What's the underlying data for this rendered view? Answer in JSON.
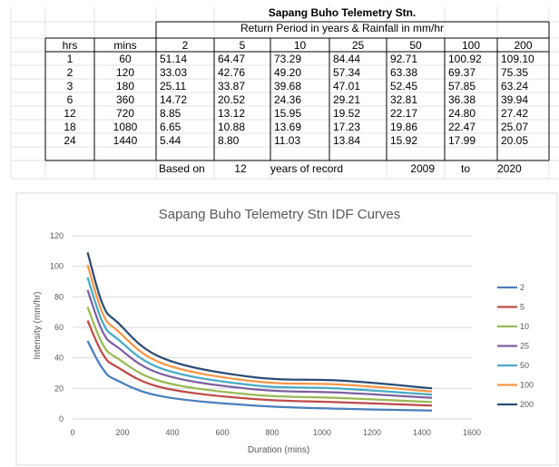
{
  "sheet": {
    "title": "Sapang Buho Telemetry Stn.",
    "subtitle": "Return Period in years & Rainfall in mm/hr",
    "headers": [
      "hrs",
      "mins",
      "2",
      "5",
      "10",
      "25",
      "50",
      "100",
      "200"
    ],
    "rows": [
      [
        "1",
        "60",
        "51.14",
        "64.47",
        "73.29",
        "84.44",
        "92.71",
        "100.92",
        "109.10"
      ],
      [
        "2",
        "120",
        "33.03",
        "42.76",
        "49.20",
        "57.34",
        "63.38",
        "69.37",
        "75.35"
      ],
      [
        "3",
        "180",
        "25.11",
        "33.87",
        "39.68",
        "47.01",
        "52.45",
        "57.85",
        "63.24"
      ],
      [
        "6",
        "360",
        "14.72",
        "20.52",
        "24.36",
        "29.21",
        "32.81",
        "36.38",
        "39.94"
      ],
      [
        "12",
        "720",
        "8.85",
        "13.12",
        "15.95",
        "19.52",
        "22.17",
        "24.80",
        "27.42"
      ],
      [
        "18",
        "1080",
        "6.65",
        "10.88",
        "13.69",
        "17.23",
        "19.86",
        "22.47",
        "25.07"
      ],
      [
        "24",
        "1440",
        "5.44",
        "8.80",
        "11.03",
        "13.84",
        "15.92",
        "17.99",
        "20.05"
      ]
    ],
    "footer": {
      "based_on": "Based on",
      "years": "12",
      "years_of_record": "years of record",
      "start_year": "2009",
      "to": "to",
      "end_year": "2020"
    }
  },
  "chart_data": {
    "type": "line",
    "title": "Sapang Buho Telemetry Stn IDF Curves",
    "xlabel": "Duration (mins)",
    "ylabel": "Intensity (mm/hr)",
    "xlim": [
      0,
      1600
    ],
    "ylim": [
      0,
      120
    ],
    "xticks": [
      0,
      200,
      400,
      600,
      800,
      1000,
      1200,
      1400,
      1600
    ],
    "yticks": [
      0,
      20,
      40,
      60,
      80,
      100,
      120
    ],
    "grid": "horizontal",
    "legend_position": "right",
    "x": [
      60,
      120,
      180,
      360,
      720,
      1080,
      1440
    ],
    "series": [
      {
        "name": "2",
        "color": "#4a7ebb",
        "values": [
          51.14,
          33.03,
          25.11,
          14.72,
          8.85,
          6.65,
          5.44
        ]
      },
      {
        "name": "5",
        "color": "#be4b48",
        "values": [
          64.47,
          42.76,
          33.87,
          20.52,
          13.12,
          10.88,
          8.8
        ]
      },
      {
        "name": "10",
        "color": "#98b954",
        "values": [
          73.29,
          49.2,
          39.68,
          24.36,
          15.95,
          13.69,
          11.03
        ]
      },
      {
        "name": "25",
        "color": "#7d60a0",
        "values": [
          84.44,
          57.34,
          47.01,
          29.21,
          19.52,
          17.23,
          13.84
        ]
      },
      {
        "name": "50",
        "color": "#46aac5",
        "values": [
          92.71,
          63.38,
          52.45,
          32.81,
          22.17,
          19.86,
          15.92
        ]
      },
      {
        "name": "100",
        "color": "#f79646",
        "values": [
          100.92,
          69.37,
          57.85,
          36.38,
          24.8,
          22.47,
          17.99
        ]
      },
      {
        "name": "200",
        "color": "#2c4d75",
        "values": [
          109.1,
          75.35,
          63.24,
          39.94,
          27.42,
          25.07,
          20.05
        ]
      }
    ]
  }
}
